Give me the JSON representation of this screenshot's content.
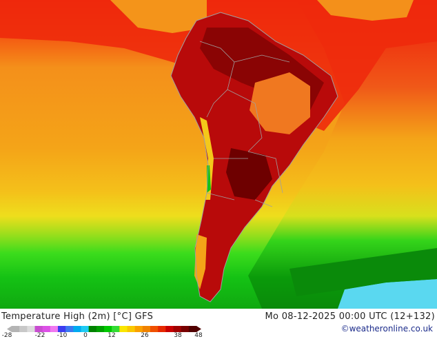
{
  "map": {
    "title": "Temperature High (2m) [°C] GFS",
    "datetime": "Mo 08-12-2025 00:00 UTC (12+132)",
    "credit": "©weatheronline.co.uk",
    "colors": {
      "ocean_warm": "#f4a418",
      "ocean_hot": "#ec1c0c",
      "land_hot": "#b80a0a",
      "land_very_hot": "#7a0000",
      "plateau": "#f07820",
      "cool_green": "#14c214",
      "cold_green": "#0a8a0a",
      "ice": "#5ad8f0",
      "borders": "#a0a0a0"
    }
  },
  "legend": {
    "ticks": [
      "-28",
      "-22",
      "-10",
      "0",
      "12",
      "26",
      "38",
      "48"
    ],
    "colors": [
      "#b4b4b4",
      "#c8c8c8",
      "#dcdcdc",
      "#c84cd0",
      "#dc50e6",
      "#f078f0",
      "#3c3cf0",
      "#3c78f0",
      "#00aaf0",
      "#1ecbf4",
      "#008200",
      "#00a000",
      "#00c800",
      "#32dc32",
      "#fae600",
      "#fac800",
      "#faa000",
      "#f08200",
      "#f05000",
      "#e62800",
      "#c80000",
      "#a00000",
      "#780000",
      "#500000"
    ]
  }
}
